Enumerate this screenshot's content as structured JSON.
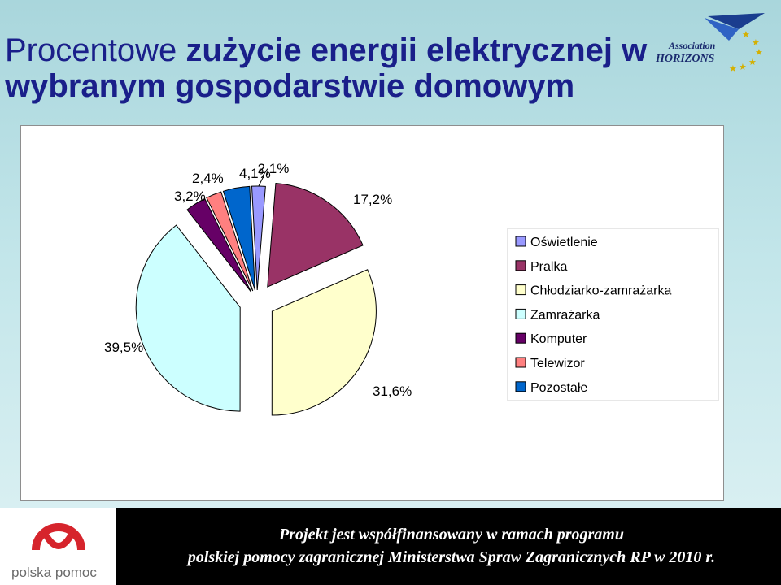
{
  "slide": {
    "title_normal": "Procentowe ",
    "title_bold": "zużycie energii elektrycznej w wybranym gospodarstwie domowym",
    "logo_text_line1": "Association",
    "logo_text_line2": "HORIZONS"
  },
  "footer": {
    "logo_name": "polska pomoc",
    "line1": "Projekt jest współfinansowany w ramach programu",
    "line2": "polskiej pomocy zagranicznej Ministerstwa Spraw Zagranicznych RP w 2010 r."
  },
  "chart_data": {
    "type": "pie",
    "title": "",
    "legend_position": "right",
    "slices": [
      {
        "name": "Oświetlenie",
        "value": 2.1,
        "label": "2,1%",
        "color": "#9999ff"
      },
      {
        "name": "Pralka",
        "value": 17.2,
        "label": "17,2%",
        "color": "#993366"
      },
      {
        "name": "Chłodziarko-zamrażarka",
        "value": 31.6,
        "label": "31,6%",
        "color": "#ffffcc"
      },
      {
        "name": "Zamrażarka",
        "value": 39.5,
        "label": "39,5%",
        "color": "#ccffff"
      },
      {
        "name": "Komputer",
        "value": 3.2,
        "label": "3,2%",
        "color": "#660066"
      },
      {
        "name": "Telewizor",
        "value": 2.4,
        "label": "2,4%",
        "color": "#ff8080"
      },
      {
        "name": "Pozostałe",
        "value": 4.1,
        "label": "4,1%",
        "color": "#0066cc"
      }
    ]
  }
}
